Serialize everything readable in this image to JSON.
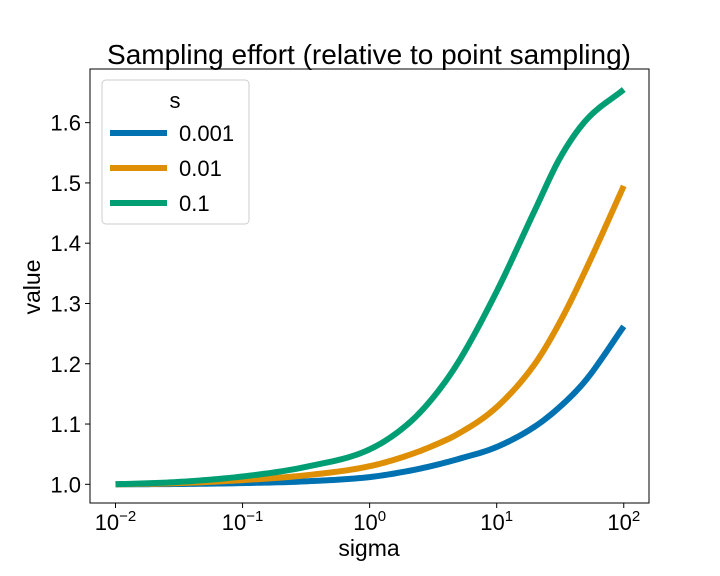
{
  "chart_data": {
    "type": "line",
    "title": "Sampling effort (relative to point sampling)",
    "xlabel": "sigma",
    "ylabel": "value",
    "x_scale": "log",
    "xlim": [
      0.0063,
      158
    ],
    "ylim": [
      0.969,
      1.689
    ],
    "x_ticks": [
      {
        "value": 0.01,
        "base": "10",
        "exp": "−2"
      },
      {
        "value": 0.1,
        "base": "10",
        "exp": "−1"
      },
      {
        "value": 1,
        "base": "10",
        "exp": "0"
      },
      {
        "value": 10,
        "base": "10",
        "exp": "1"
      },
      {
        "value": 100,
        "base": "10",
        "exp": "2"
      }
    ],
    "y_ticks": [
      {
        "value": 1.0,
        "label": "1.0"
      },
      {
        "value": 1.1,
        "label": "1.1"
      },
      {
        "value": 1.2,
        "label": "1.2"
      },
      {
        "value": 1.3,
        "label": "1.3"
      },
      {
        "value": 1.4,
        "label": "1.4"
      },
      {
        "value": 1.5,
        "label": "1.5"
      },
      {
        "value": 1.6,
        "label": "1.6"
      }
    ],
    "legend": {
      "title": "s",
      "placement": "upper-left"
    },
    "x": [
      0.01,
      0.0316,
      0.1,
      0.316,
      1,
      2,
      3.16,
      5,
      10,
      20,
      31.6,
      50,
      100
    ],
    "series": [
      {
        "name": "0.001",
        "color": "#0072b2",
        "values": [
          1.0,
          1.0005,
          1.002,
          1.005,
          1.012,
          1.022,
          1.031,
          1.042,
          1.062,
          1.096,
          1.129,
          1.172,
          1.262
        ]
      },
      {
        "name": "0.01",
        "color": "#de8f05",
        "values": [
          1.0,
          1.002,
          1.007,
          1.015,
          1.03,
          1.048,
          1.064,
          1.084,
          1.128,
          1.2,
          1.27,
          1.355,
          1.495
        ]
      },
      {
        "name": "0.1",
        "color": "#029e73",
        "values": [
          1.0,
          1.004,
          1.013,
          1.029,
          1.058,
          1.1,
          1.144,
          1.203,
          1.32,
          1.455,
          1.542,
          1.603,
          1.655
        ]
      }
    ]
  }
}
